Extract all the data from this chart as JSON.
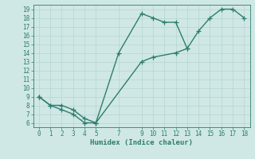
{
  "line1_x": [
    0,
    1,
    2,
    3,
    4,
    5,
    7,
    9,
    10,
    11,
    12,
    13
  ],
  "line1_y": [
    9,
    8,
    7.5,
    7,
    6,
    6,
    14,
    18.5,
    18,
    17.5,
    17.5,
    14.5
  ],
  "line2_x": [
    0,
    1,
    2,
    3,
    4,
    5,
    9,
    10,
    12,
    13,
    14,
    15,
    16,
    17,
    18
  ],
  "line2_y": [
    9,
    8,
    8,
    7.5,
    6.5,
    6,
    13,
    13.5,
    14,
    14.5,
    16.5,
    18,
    19,
    19,
    18
  ],
  "line_color": "#2e7d6e",
  "marker": "+",
  "markersize": 4,
  "linewidth": 1.0,
  "xlabel": "Humidex (Indice chaleur)",
  "xlim": [
    -0.5,
    18.5
  ],
  "ylim": [
    5.5,
    19.5
  ],
  "xticks": [
    0,
    1,
    2,
    3,
    4,
    5,
    7,
    9,
    10,
    11,
    12,
    13,
    14,
    15,
    16,
    17,
    18
  ],
  "yticks": [
    6,
    7,
    8,
    9,
    10,
    11,
    12,
    13,
    14,
    15,
    16,
    17,
    18,
    19
  ],
  "bg_color": "#cfe8e5",
  "grid_color": "#b8d4d0",
  "tick_fontsize": 5.5,
  "xlabel_fontsize": 6.5
}
